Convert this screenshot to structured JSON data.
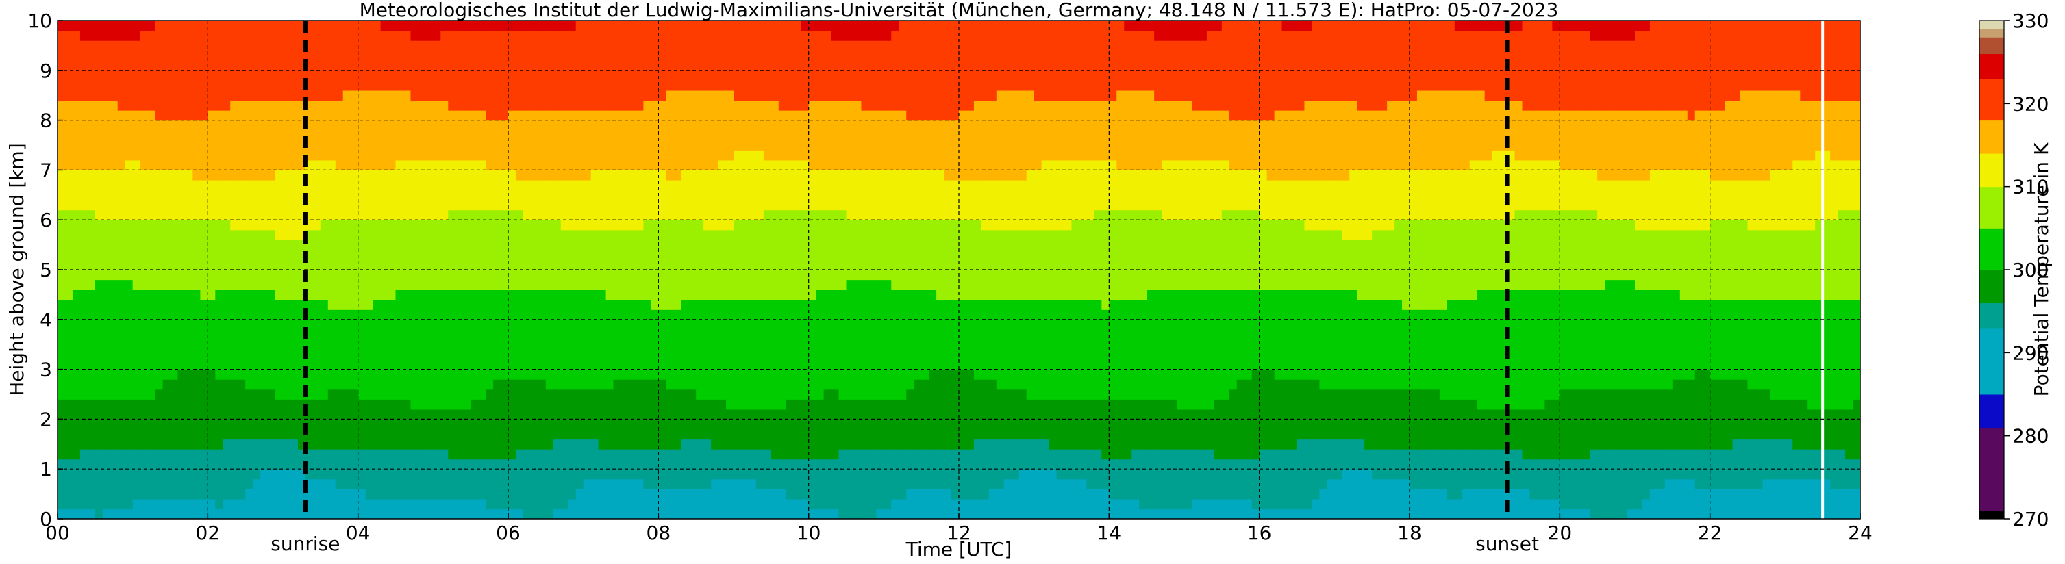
{
  "chart_data": {
    "type": "heatmap",
    "title": "Meteorologisches Institut der Ludwig-Maximilians-Universität (München, Germany; 48.148 N / 11.573 E):    HatPro: 05-07-2023",
    "xlabel": "Time [UTC]",
    "ylabel": "Height above ground [km]",
    "xlim": [
      0,
      24
    ],
    "ylim": [
      0,
      10
    ],
    "x_ticks": [
      "00",
      "02",
      "04",
      "06",
      "08",
      "10",
      "12",
      "14",
      "16",
      "18",
      "20",
      "22",
      "24"
    ],
    "y_ticks": [
      "0",
      "1",
      "2",
      "3",
      "4",
      "5",
      "6",
      "7",
      "8",
      "9",
      "10"
    ],
    "grid": true,
    "colorbar": {
      "label": "Potential Temperature in K",
      "range": [
        270,
        330
      ],
      "ticks": [
        "270",
        "280",
        "290",
        "300",
        "310",
        "320",
        "330"
      ],
      "levels": [
        {
          "from": 270,
          "to": 271,
          "color": "#000000"
        },
        {
          "from": 271,
          "to": 281,
          "color": "#5a0a5e"
        },
        {
          "from": 281,
          "to": 285,
          "color": "#0a0ac8"
        },
        {
          "from": 285,
          "to": 293,
          "color": "#00a8c0"
        },
        {
          "from": 293,
          "to": 296,
          "color": "#00a090"
        },
        {
          "from": 296,
          "to": 300,
          "color": "#009a00"
        },
        {
          "from": 300,
          "to": 305,
          "color": "#00cc00"
        },
        {
          "from": 305,
          "to": 310,
          "color": "#9af000"
        },
        {
          "from": 310,
          "to": 314,
          "color": "#f0f000"
        },
        {
          "from": 314,
          "to": 318,
          "color": "#ffb400"
        },
        {
          "from": 318,
          "to": 323,
          "color": "#ff3c00"
        },
        {
          "from": 323,
          "to": 326,
          "color": "#dd0000"
        },
        {
          "from": 326,
          "to": 328,
          "color": "#b05030"
        },
        {
          "from": 328,
          "to": 329,
          "color": "#c8a070"
        },
        {
          "from": 329,
          "to": 330,
          "color": "#dcd8b0"
        }
      ]
    },
    "profile": {
      "heights_km": [
        0,
        0.5,
        1,
        1.5,
        2,
        2.5,
        3,
        3.5,
        4,
        4.5,
        5,
        5.5,
        6,
        6.5,
        7,
        7.5,
        8,
        8.5,
        9,
        9.5,
        10
      ],
      "theta_K": [
        292,
        293,
        294,
        296.5,
        298.5,
        300,
        301,
        302,
        303,
        305,
        307,
        308.5,
        310,
        312,
        314,
        315.5,
        317,
        318.5,
        320.5,
        322,
        323
      ]
    },
    "markers": [
      {
        "label": "sunrise",
        "x": 3.3,
        "style": "dashed"
      },
      {
        "label": "sunset",
        "x": 19.3,
        "style": "dashed"
      }
    ],
    "data_gaps": [
      23.5
    ]
  }
}
